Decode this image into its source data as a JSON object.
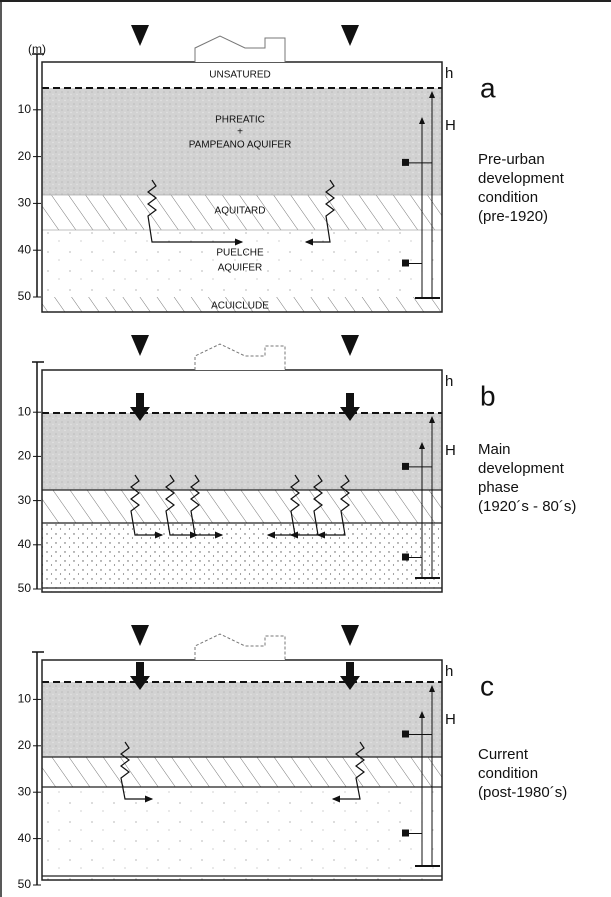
{
  "panels": [
    {
      "letter": "a",
      "unit": "(m)",
      "depth_ticks": [
        10,
        20,
        30,
        40,
        50
      ],
      "h": "h",
      "H": "H",
      "caption": [
        "Pre-urban",
        "development",
        "condition",
        "(pre-1920)"
      ],
      "layers": [
        "UNSATURED",
        "PHREATIC",
        "+",
        "PAMPEANO AQUIFER",
        "AQUITARD",
        "PUELCHE",
        "AQUIFER",
        "ACUICLUDE"
      ]
    },
    {
      "letter": "b",
      "depth_ticks": [
        10,
        20,
        30,
        40,
        50
      ],
      "h": "h",
      "H": "H",
      "caption": [
        "Main",
        "development",
        "phase",
        "(1920´s - 80´s)"
      ]
    },
    {
      "letter": "c",
      "depth_ticks": [
        10,
        20,
        30,
        40,
        50
      ],
      "h": "h",
      "H": "H",
      "caption": [
        "Current",
        "condition",
        "(post-1980´s)"
      ]
    }
  ]
}
